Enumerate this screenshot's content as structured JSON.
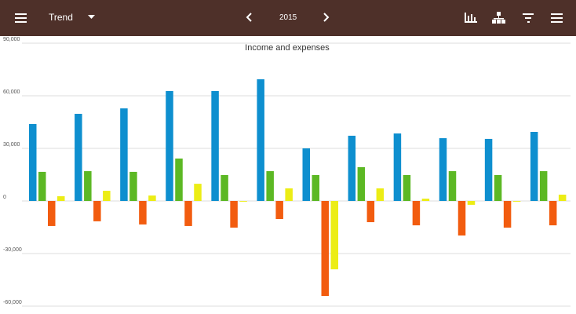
{
  "header": {
    "view": "Trend",
    "year": "2015"
  },
  "chart_data": {
    "type": "bar",
    "title": "Income and expenses",
    "categories": [
      null,
      null,
      null,
      null,
      null,
      null,
      null,
      null,
      null,
      null,
      null,
      null
    ],
    "series": [
      {
        "color": "#0e8fcf",
        "values": [
          43900,
          49700,
          52800,
          62700,
          62700,
          69400,
          30000,
          37200,
          38500,
          35800,
          35400,
          39400
        ]
      },
      {
        "color": "#5cb824",
        "values": [
          16600,
          17000,
          16600,
          24200,
          14800,
          17000,
          14800,
          19300,
          14800,
          17000,
          14800,
          17000
        ]
      },
      {
        "color": "#f25c0f",
        "values": [
          -14300,
          -11600,
          -13400,
          -14300,
          -15200,
          -10300,
          -54200,
          -12100,
          -13900,
          -19700,
          -15200,
          -13900
        ]
      },
      {
        "color": "#eced15",
        "values": [
          2700,
          5800,
          3100,
          9800,
          -400,
          7200,
          -39000,
          7200,
          1300,
          -2200,
          -400,
          3600
        ]
      }
    ],
    "ylim": [
      -60000,
      90000
    ],
    "yticks": [
      {
        "value": -60000,
        "label": "-60,000"
      },
      {
        "value": -30000,
        "label": "-30,000"
      },
      0,
      {
        "value": 30000,
        "label": "30,000"
      },
      {
        "value": 60000,
        "label": "60,000"
      },
      {
        "value": 90000,
        "label": "90,000"
      }
    ],
    "grid": true
  }
}
